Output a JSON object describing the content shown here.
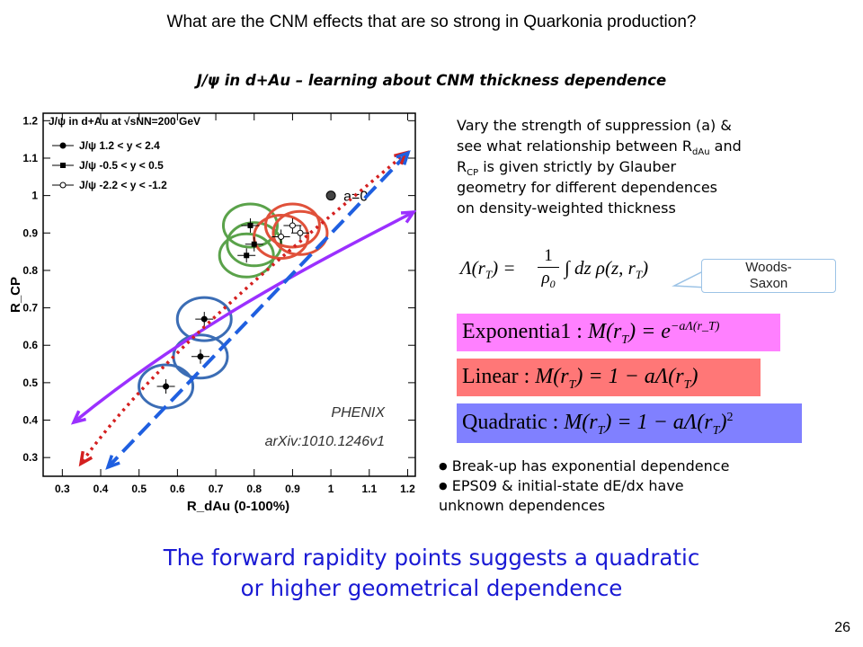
{
  "slide": {
    "title": "What are the CNM effects that are so strong in Quarkonia production?",
    "subtitle": "J/ψ in d+Au – learning about CNM thickness dependence",
    "page_number": "26"
  },
  "description": {
    "line1": "Vary the strength of suppression (a) &",
    "line2a": "see what relationship between R",
    "line2_sub": "dAu",
    "line2b": " and",
    "line3a": "R",
    "line3_sub": "CP",
    "line3b": " is given strictly by Glauber",
    "line4": "geometry for different dependences",
    "line5": "on density-weighted thickness"
  },
  "callout": {
    "line1": "Woods-",
    "line2": "Saxon"
  },
  "formulas": {
    "lambda": {
      "lhs": "Λ(r",
      "lhs_sub": "T",
      "mid": ") = ",
      "frac_num": "1",
      "frac_den": "ρ",
      "frac_den_sub": "0",
      "integral": "∫ dz ρ(z, r",
      "integral_sub": "T",
      "end": ")"
    },
    "exponential": {
      "label": "Exponentia1 : ",
      "expr": "M(r",
      "expr_sub": "T",
      "expr2": ") = e",
      "sup": "−aΛ(r_T)",
      "color": "#ff80ff"
    },
    "linear": {
      "label": "Linear  : ",
      "expr": "M(r",
      "expr_sub": "T",
      "expr2": ") = 1 − aΛ(r",
      "expr2_sub": "T",
      "end": ")",
      "color": "#ff7777"
    },
    "quadratic": {
      "label": "Quadratic  : ",
      "expr": "M(r",
      "expr_sub": "T",
      "expr2": ") = 1 − aΛ(r",
      "expr2_sub": "T",
      "end": ")",
      "sup": "2",
      "color": "#8080ff"
    }
  },
  "bullets": [
    "Break-up has exponential dependence",
    "EPS09 & initial-state dE/dx have",
    "unknown dependences"
  ],
  "conclusion": {
    "line1": "The forward rapidity points suggests a quadratic",
    "line2": "or higher geometrical dependence"
  },
  "chart_data": {
    "type": "scatter",
    "title": "J/ψ in d+Au at √sNN=200 GeV",
    "xlabel": "R_dAu (0-100%)",
    "ylabel": "R_CP",
    "xlim": [
      0.25,
      1.22
    ],
    "ylim": [
      0.25,
      1.22
    ],
    "x_ticks": [
      "0.3",
      "0.4",
      "0.5",
      "0.6",
      "0.7",
      "0.8",
      "0.9",
      "1",
      "1.1",
      "1.2"
    ],
    "y_ticks": [
      "0.3",
      "0.4",
      "0.5",
      "0.6",
      "0.7",
      "0.8",
      "0.9",
      "1",
      "1.1",
      "1.2"
    ],
    "legend": [
      "J/ψ 1.2 < y < 2.4",
      "J/ψ -0.5 < y < 0.5",
      "J/ψ -2.2 < y < -1.2"
    ],
    "legend_position": "top-left",
    "annotation_a0": "a=0",
    "annotation_phenix": "PHENIX",
    "annotation_arxiv": "arXiv:1010.1246v1",
    "points": [
      {
        "x": 0.57,
        "y": 0.49,
        "series": "J/ψ 1.2 < y < 2.4",
        "ring": "#3b6db5"
      },
      {
        "x": 0.66,
        "y": 0.57,
        "series": "J/ψ 1.2 < y < 2.4",
        "ring": "#3b6db5"
      },
      {
        "x": 0.67,
        "y": 0.67,
        "series": "J/ψ 1.2 < y < 2.4",
        "ring": "#3b6db5"
      },
      {
        "x": 0.78,
        "y": 0.84,
        "series": "J/ψ -0.5 < y < 0.5",
        "ring": "#5aa24a"
      },
      {
        "x": 0.8,
        "y": 0.87,
        "series": "J/ψ -0.5 < y < 0.5",
        "ring": "#5aa24a"
      },
      {
        "x": 0.79,
        "y": 0.92,
        "series": "J/ψ -0.5 < y < 0.5",
        "ring": "#5aa24a"
      },
      {
        "x": 0.87,
        "y": 0.89,
        "series": "J/ψ -2.2 < y < -1.2",
        "ring": "#e0513a"
      },
      {
        "x": 0.9,
        "y": 0.92,
        "series": "J/ψ -2.2 < y < -1.2",
        "ring": "#e0513a"
      },
      {
        "x": 0.92,
        "y": 0.9,
        "series": "J/ψ -2.2 < y < -1.2",
        "ring": "#e0513a"
      }
    ],
    "curves": [
      {
        "name": "Exponential",
        "color": "#9b30ff",
        "style": "solid"
      },
      {
        "name": "Linear",
        "color": "#d42020",
        "style": "dotted"
      },
      {
        "name": "Quadratic",
        "color": "#1f5fe0",
        "style": "dashed"
      }
    ]
  }
}
